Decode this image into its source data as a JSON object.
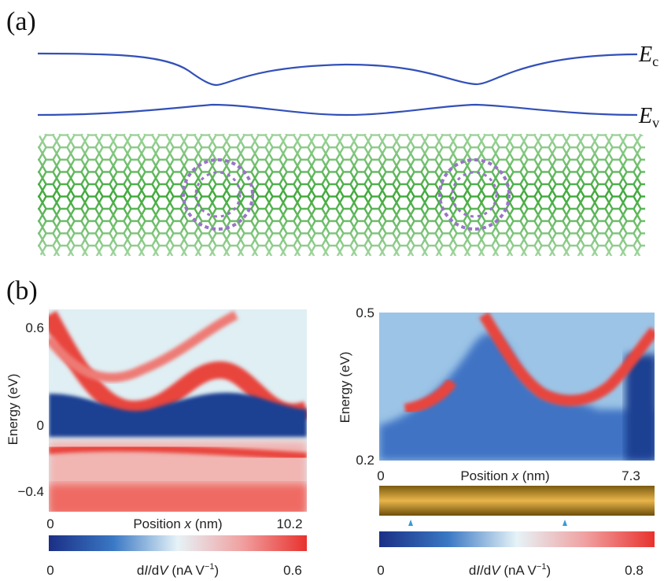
{
  "panel_a": {
    "label": "(a)",
    "bands": [
      {
        "symbol": "E",
        "subscript": "c"
      },
      {
        "symbol": "E",
        "subscript": "v"
      }
    ]
  },
  "panel_b": {
    "label": "(b)",
    "left": {
      "y_label": "Energy (eV)",
      "y_ticks": [
        "0.6",
        "0",
        "−0.4"
      ],
      "x_label": [
        "Position ",
        "x",
        " (nm)"
      ],
      "x_ticks": [
        "0",
        "10.2"
      ],
      "colorbar": {
        "min": "0",
        "max": "0.6",
        "label": [
          "d",
          "I",
          "/d",
          "V",
          " (nA V",
          "−1",
          ")"
        ]
      }
    },
    "right": {
      "y_label": "Energy (eV)",
      "y_ticks": [
        "0.5",
        "0.2"
      ],
      "x_label": [
        "Position ",
        "x",
        " (nm)"
      ],
      "x_ticks": [
        "0",
        "7.3"
      ],
      "colorbar": {
        "min": "0",
        "max": "0.8",
        "label": [
          "d",
          "I",
          "/d",
          "V",
          " (nA V",
          "−1",
          ")"
        ]
      }
    }
  }
}
